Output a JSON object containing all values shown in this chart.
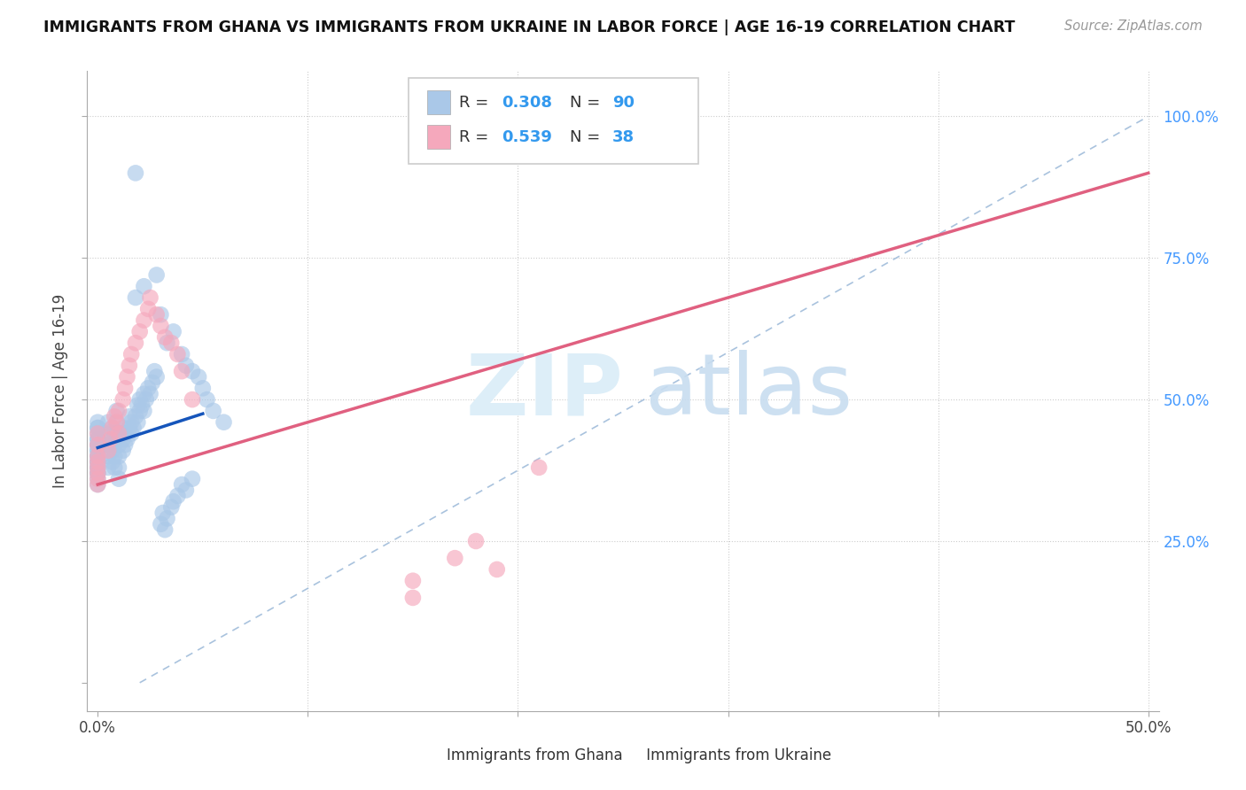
{
  "title": "IMMIGRANTS FROM GHANA VS IMMIGRANTS FROM UKRAINE IN LABOR FORCE | AGE 16-19 CORRELATION CHART",
  "source": "Source: ZipAtlas.com",
  "ylabel": "In Labor Force | Age 16-19",
  "xlim": [
    -0.005,
    0.505
  ],
  "ylim": [
    -0.05,
    1.08
  ],
  "ghana_R": 0.308,
  "ghana_N": 90,
  "ukraine_R": 0.539,
  "ukraine_N": 38,
  "ghana_color": "#aac8e8",
  "ukraine_color": "#f5a8bc",
  "ghana_line_color": "#1555bb",
  "ukraine_line_color": "#e06080",
  "ref_line_color": "#9ab8d8",
  "legend_label_ghana": "Immigrants from Ghana",
  "legend_label_ukraine": "Immigrants from Ukraine",
  "ghana_x": [
    0.0,
    0.0,
    0.0,
    0.0,
    0.0,
    0.0,
    0.0,
    0.0,
    0.0,
    0.0,
    0.0,
    0.0,
    0.0,
    0.0,
    0.0,
    0.0,
    0.0,
    0.0,
    0.0,
    0.0,
    0.005,
    0.005,
    0.005,
    0.005,
    0.005,
    0.007,
    0.007,
    0.007,
    0.007,
    0.008,
    0.008,
    0.008,
    0.008,
    0.009,
    0.009,
    0.01,
    0.01,
    0.01,
    0.01,
    0.01,
    0.012,
    0.012,
    0.012,
    0.013,
    0.013,
    0.014,
    0.015,
    0.015,
    0.016,
    0.016,
    0.017,
    0.018,
    0.018,
    0.019,
    0.019,
    0.02,
    0.02,
    0.021,
    0.022,
    0.022,
    0.023,
    0.024,
    0.025,
    0.026,
    0.027,
    0.028,
    0.03,
    0.031,
    0.032,
    0.033,
    0.035,
    0.036,
    0.038,
    0.04,
    0.042,
    0.045,
    0.018,
    0.022,
    0.028,
    0.03,
    0.033,
    0.036,
    0.04,
    0.042,
    0.045,
    0.048,
    0.05,
    0.052,
    0.055,
    0.06
  ],
  "ghana_y": [
    0.38,
    0.4,
    0.42,
    0.44,
    0.46,
    0.37,
    0.39,
    0.41,
    0.43,
    0.36,
    0.38,
    0.4,
    0.42,
    0.45,
    0.35,
    0.37,
    0.39,
    0.41,
    0.43,
    0.45,
    0.38,
    0.4,
    0.42,
    0.44,
    0.46,
    0.39,
    0.41,
    0.43,
    0.45,
    0.38,
    0.4,
    0.42,
    0.44,
    0.46,
    0.48,
    0.36,
    0.38,
    0.4,
    0.42,
    0.44,
    0.41,
    0.43,
    0.45,
    0.42,
    0.44,
    0.43,
    0.45,
    0.47,
    0.44,
    0.46,
    0.45,
    0.9,
    0.47,
    0.49,
    0.46,
    0.48,
    0.5,
    0.49,
    0.51,
    0.48,
    0.5,
    0.52,
    0.51,
    0.53,
    0.55,
    0.54,
    0.28,
    0.3,
    0.27,
    0.29,
    0.31,
    0.32,
    0.33,
    0.35,
    0.34,
    0.36,
    0.68,
    0.7,
    0.72,
    0.65,
    0.6,
    0.62,
    0.58,
    0.56,
    0.55,
    0.54,
    0.52,
    0.5,
    0.48,
    0.46
  ],
  "ukraine_x": [
    0.0,
    0.0,
    0.0,
    0.0,
    0.0,
    0.0,
    0.0,
    0.0,
    0.005,
    0.006,
    0.007,
    0.008,
    0.009,
    0.01,
    0.01,
    0.012,
    0.013,
    0.014,
    0.015,
    0.016,
    0.018,
    0.02,
    0.022,
    0.024,
    0.025,
    0.028,
    0.03,
    0.032,
    0.035,
    0.038,
    0.04,
    0.045,
    0.15,
    0.17,
    0.19,
    0.21,
    0.15,
    0.18
  ],
  "ukraine_y": [
    0.36,
    0.38,
    0.4,
    0.42,
    0.44,
    0.35,
    0.37,
    0.39,
    0.41,
    0.43,
    0.45,
    0.47,
    0.46,
    0.44,
    0.48,
    0.5,
    0.52,
    0.54,
    0.56,
    0.58,
    0.6,
    0.62,
    0.64,
    0.66,
    0.68,
    0.65,
    0.63,
    0.61,
    0.6,
    0.58,
    0.55,
    0.5,
    0.18,
    0.22,
    0.2,
    0.38,
    0.15,
    0.25
  ],
  "ghana_line_x": [
    0.0,
    0.05
  ],
  "ghana_line_y": [
    0.415,
    0.475
  ],
  "ukraine_line_x": [
    0.0,
    0.5
  ],
  "ukraine_line_y": [
    0.35,
    0.9
  ],
  "ref_line_x": [
    0.02,
    0.5
  ],
  "ref_line_y": [
    0.0,
    1.0
  ]
}
